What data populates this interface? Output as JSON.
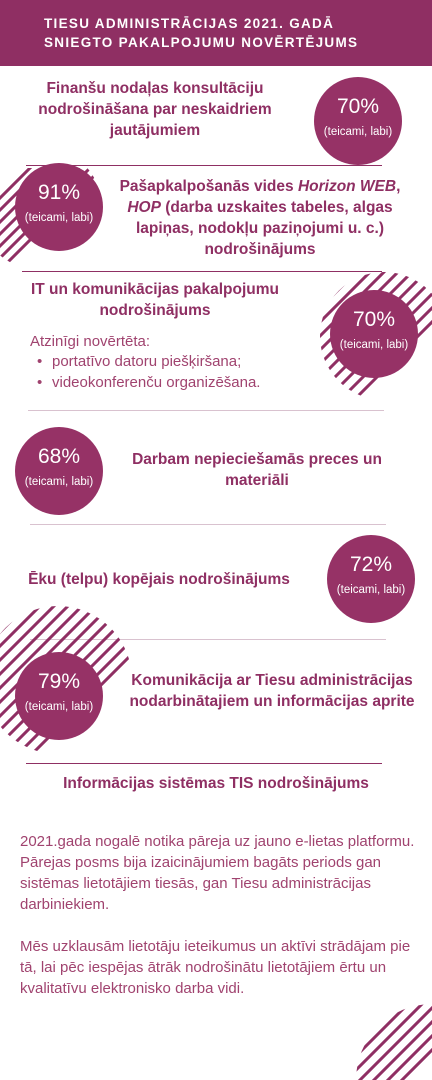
{
  "header": {
    "title_line1": "TIESU ADMINISTRĀCIJAS 2021. GADĀ",
    "title_line2": "SNIEGTO PAKALPOJUMU NOVĒRTĒJUMS"
  },
  "colors": {
    "primary": "#8f2f63",
    "circle": "#963266",
    "text": "#a0436f"
  },
  "items": [
    {
      "heading": "Finanšu nodaļas konsultāciju nodrošināšana par neskaidriem jautājumiem",
      "percent": "70%",
      "rating": "(teicami, labi)"
    },
    {
      "heading_part1": "Pašapkalpošanās vides ",
      "heading_em1": "Horizon WEB",
      "heading_part2": ", ",
      "heading_em2": "HOP",
      "heading_part3": " (darba uzskaites tabeles, algas lapiņas, nodokļu paziņojumi u. c.) nodrošinājums",
      "percent": "91%",
      "rating": "(teicami, labi)"
    },
    {
      "heading": "IT un komunikācijas pakalpojumu nodrošinājums",
      "percent": "70%",
      "rating": "(teicami, labi)",
      "positive_label": "Atzinīgi novērtēta:",
      "positives": [
        "portatīvo datoru piešķiršana;",
        "videokonferenču organizēšana."
      ]
    },
    {
      "heading": "Darbam nepieciešamās preces un materiāli",
      "percent": "68%",
      "rating": "(teicami, labi)"
    },
    {
      "heading": "Ēku (telpu) kopējais nodrošinājums",
      "percent": "72%",
      "rating": "(teicami, labi)"
    },
    {
      "heading": "Komunikācija ar Tiesu administrācijas nodarbinātajiem un informācijas aprite",
      "percent": "79%",
      "rating": "(teicami, labi)"
    }
  ],
  "tis": {
    "heading": "Informācijas sistēmas TIS nodrošinājums",
    "paragraph1": "2021.gada nogalē notika pāreja uz jauno e-lietas platformu. Pārejas posms  bija izaicinājumiem bagāts periods gan sistēmas lietotājiem tiesās, gan Tiesu administrācijas darbiniekiem.",
    "paragraph2": "Mēs uzklausām lietotāju ieteikumus un aktīvi strādājam pie tā, lai pēc iespējas ātrāk nodrošinātu lietotājiem ērtu un kvalitatīvu elektronisko darba vidi."
  }
}
